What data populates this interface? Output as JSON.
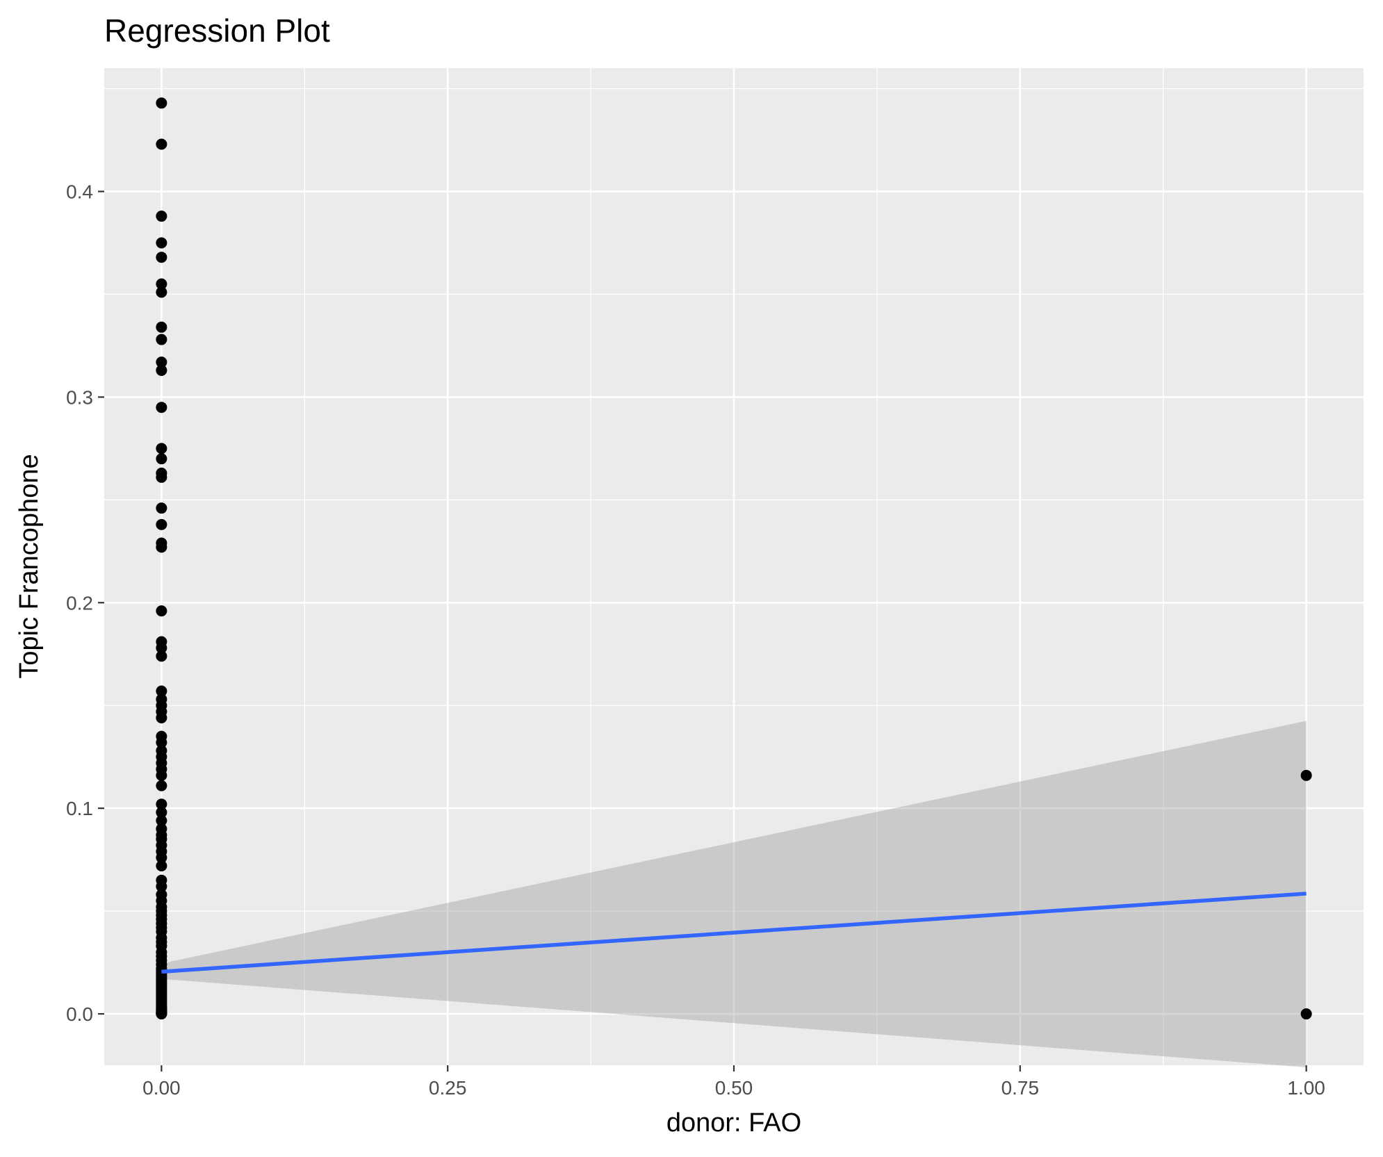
{
  "chart_data": {
    "type": "scatter",
    "title": "Regression Plot",
    "xlabel": "donor: FAO",
    "ylabel": "Topic Francophone",
    "xlim": [
      -0.05,
      1.05
    ],
    "ylim": [
      -0.025,
      0.46
    ],
    "x_ticks": [
      0.0,
      0.25,
      0.5,
      0.75,
      1.0
    ],
    "x_tick_labels": [
      "0.00",
      "0.25",
      "0.50",
      "0.75",
      "1.00"
    ],
    "y_ticks": [
      0.0,
      0.1,
      0.2,
      0.3,
      0.4
    ],
    "y_tick_labels": [
      "0.0",
      "0.1",
      "0.2",
      "0.3",
      "0.4"
    ],
    "grid": true,
    "legend": "none",
    "colors": {
      "panel": "#ebebeb",
      "grid": "#ffffff",
      "points": "#000000",
      "line": "#3366ff",
      "ribbon": "#999999"
    },
    "points": {
      "x": [
        0,
        0,
        0,
        0,
        0,
        0,
        0,
        0,
        0,
        0,
        0,
        0,
        0,
        0,
        0,
        0,
        0,
        0,
        0,
        0,
        0,
        0,
        0,
        0,
        0,
        0,
        0,
        0,
        0,
        0,
        0,
        0,
        0,
        0,
        0,
        0,
        0,
        0,
        0,
        0,
        0,
        0,
        0,
        0,
        0,
        0,
        0,
        0,
        0,
        0,
        0,
        0,
        0,
        0,
        0,
        0,
        0,
        0,
        0,
        0,
        0,
        0,
        0,
        0,
        0,
        0,
        0,
        0,
        0,
        0,
        0,
        0,
        0,
        0,
        0,
        0,
        0,
        0,
        0,
        0,
        0,
        0,
        0,
        0,
        0,
        0,
        0,
        0,
        0,
        0,
        0,
        0,
        0,
        0,
        0,
        0,
        1,
        1
      ],
      "y": [
        0.443,
        0.423,
        0.388,
        0.375,
        0.368,
        0.355,
        0.351,
        0.334,
        0.328,
        0.317,
        0.313,
        0.295,
        0.275,
        0.27,
        0.263,
        0.261,
        0.246,
        0.238,
        0.229,
        0.227,
        0.196,
        0.181,
        0.178,
        0.174,
        0.157,
        0.153,
        0.15,
        0.147,
        0.144,
        0.135,
        0.132,
        0.128,
        0.125,
        0.122,
        0.119,
        0.116,
        0.111,
        0.102,
        0.098,
        0.094,
        0.09,
        0.087,
        0.085,
        0.082,
        0.079,
        0.076,
        0.072,
        0.065,
        0.062,
        0.058,
        0.055,
        0.052,
        0.05,
        0.048,
        0.046,
        0.044,
        0.042,
        0.04,
        0.037,
        0.035,
        0.033,
        0.03,
        0.028,
        0.026,
        0.024,
        0.022,
        0.021,
        0.02,
        0.019,
        0.018,
        0.017,
        0.016,
        0.015,
        0.014,
        0.013,
        0.012,
        0.011,
        0.01,
        0.009,
        0.008,
        0.007,
        0.006,
        0.005,
        0.004,
        0.003,
        0.003,
        0.002,
        0.002,
        0.001,
        0.001,
        0.001,
        0.0005,
        0.0003,
        0.0002,
        0.0001,
        0.0,
        0.116,
        0.0
      ]
    },
    "regression": {
      "x": [
        0,
        1
      ],
      "y": [
        0.0205,
        0.0585
      ],
      "ci_lower": [
        0.017,
        -0.026
      ],
      "ci_upper": [
        0.0245,
        0.1425
      ]
    }
  }
}
